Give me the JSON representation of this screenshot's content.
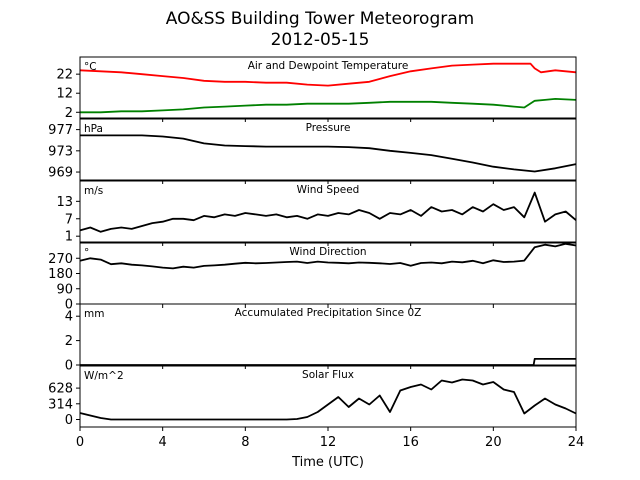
{
  "figure": {
    "title": "AO&SS Building Tower Meteorogram",
    "subtitle": "2012-05-15",
    "xlabel": "Time (UTC)"
  },
  "chart_data": [
    {
      "type": "line",
      "title": "Air and Dewpoint Temperature",
      "ylabel": "°C",
      "xlim": [
        0,
        24
      ],
      "ylim": [
        -1,
        31
      ],
      "yticks": [
        2,
        12,
        22
      ],
      "xticks": [
        0,
        4,
        8,
        12,
        16,
        20,
        24
      ],
      "series": [
        {
          "color": "#ff0000",
          "x": [
            0,
            1,
            2,
            3,
            4,
            5,
            6,
            7,
            8,
            9,
            10,
            11,
            12,
            13,
            14,
            15,
            16,
            17,
            18,
            19,
            20,
            21,
            21.8,
            22,
            22.3,
            23,
            24
          ],
          "y": [
            24,
            23.5,
            23,
            22,
            21,
            20,
            18.5,
            18,
            18,
            17.5,
            17.5,
            16.5,
            16,
            17,
            18,
            21,
            23.5,
            25,
            26.5,
            27,
            27.5,
            27.5,
            27.5,
            25,
            23,
            24,
            23
          ]
        },
        {
          "color": "#008000",
          "x": [
            0,
            1,
            2,
            3,
            4,
            5,
            6,
            7,
            8,
            9,
            10,
            11,
            12,
            13,
            14,
            15,
            16,
            17,
            18,
            19,
            20,
            21,
            21.5,
            22,
            22.5,
            23,
            24
          ],
          "y": [
            2,
            2,
            2.5,
            2.5,
            3,
            3.5,
            4.5,
            5,
            5.5,
            6,
            6,
            6.5,
            6.5,
            6.5,
            7,
            7.5,
            7.5,
            7.5,
            7,
            6.5,
            6,
            5,
            4.5,
            8,
            8.5,
            9,
            8.5
          ]
        }
      ]
    },
    {
      "type": "line",
      "title": "Pressure",
      "ylabel": "hPa",
      "xlim": [
        0,
        24
      ],
      "ylim": [
        967.5,
        979
      ],
      "yticks": [
        969,
        973,
        977
      ],
      "xticks": [
        0,
        4,
        8,
        12,
        16,
        20,
        24
      ],
      "series": [
        {
          "color": "#000000",
          "x": [
            0,
            1,
            2,
            3,
            4,
            5,
            6,
            7,
            8,
            9,
            10,
            11,
            12,
            13,
            14,
            15,
            16,
            17,
            18,
            19,
            20,
            21,
            22,
            23,
            24
          ],
          "y": [
            975.9,
            975.9,
            975.9,
            975.9,
            975.7,
            975.3,
            974.4,
            974,
            973.9,
            973.8,
            973.8,
            973.8,
            973.8,
            973.7,
            973.5,
            973,
            972.6,
            972.2,
            971.5,
            970.8,
            970,
            969.5,
            969.1,
            969.7,
            970.5
          ]
        }
      ]
    },
    {
      "type": "line",
      "title": "Wind Speed",
      "ylabel": "m/s",
      "xlim": [
        0,
        24
      ],
      "ylim": [
        -1,
        20
      ],
      "yticks": [
        1,
        7,
        13
      ],
      "xticks": [
        0,
        4,
        8,
        12,
        16,
        20,
        24
      ],
      "series": [
        {
          "color": "#000000",
          "x": [
            0,
            0.5,
            1,
            1.5,
            2,
            2.5,
            3,
            3.5,
            4,
            4.5,
            5,
            5.5,
            6,
            6.5,
            7,
            7.5,
            8,
            8.5,
            9,
            9.5,
            10,
            10.5,
            11,
            11.5,
            12,
            12.5,
            13,
            13.5,
            14,
            14.5,
            15,
            15.5,
            16,
            16.5,
            17,
            17.5,
            18,
            18.5,
            19,
            19.5,
            20,
            20.5,
            21,
            21.5,
            22,
            22.5,
            23,
            23.5,
            24
          ],
          "y": [
            3,
            4,
            2.5,
            3.5,
            4,
            3.5,
            4.5,
            5.5,
            6,
            7,
            7,
            6.5,
            8,
            7.5,
            8.5,
            8,
            9,
            8.5,
            8,
            8.5,
            7.5,
            8,
            7,
            8.5,
            8,
            9,
            8.5,
            10,
            9,
            7,
            9,
            8.5,
            10,
            8,
            11,
            9.5,
            10,
            8.5,
            11,
            9.5,
            12,
            10,
            11,
            7.5,
            16,
            6,
            8.5,
            9.5,
            6.5
          ]
        }
      ]
    },
    {
      "type": "line",
      "title": "Wind Direction",
      "ylabel": "°",
      "xlim": [
        0,
        24
      ],
      "ylim": [
        0,
        360
      ],
      "yticks": [
        0,
        90,
        180,
        270
      ],
      "xticks": [
        0,
        4,
        8,
        12,
        16,
        20,
        24
      ],
      "series": [
        {
          "color": "#000000",
          "x": [
            0,
            0.5,
            1,
            1.5,
            2,
            2.5,
            3,
            3.5,
            4,
            4.5,
            5,
            5.5,
            6,
            6.5,
            7,
            7.5,
            8,
            8.5,
            9,
            9.5,
            10,
            10.5,
            11,
            11.5,
            12,
            12.5,
            13,
            13.5,
            14,
            14.5,
            15,
            15.5,
            16,
            16.5,
            17,
            17.5,
            18,
            18.5,
            19,
            19.5,
            20,
            20.5,
            21,
            21.5,
            22,
            22.5,
            23,
            23.5,
            24
          ],
          "y": [
            255,
            270,
            262,
            235,
            240,
            232,
            228,
            222,
            215,
            210,
            220,
            215,
            225,
            228,
            232,
            238,
            243,
            240,
            242,
            245,
            248,
            250,
            242,
            250,
            245,
            243,
            240,
            245,
            243,
            240,
            236,
            242,
            226,
            242,
            245,
            240,
            250,
            246,
            255,
            240,
            258,
            248,
            250,
            256,
            335,
            350,
            340,
            355,
            345
          ]
        }
      ]
    },
    {
      "type": "line",
      "title": "Accumulated Precipitation Since 0Z",
      "ylabel": "mm",
      "xlim": [
        0,
        24
      ],
      "ylim": [
        0,
        5
      ],
      "yticks": [
        0,
        2,
        4
      ],
      "xticks": [
        0,
        4,
        8,
        12,
        16,
        20,
        24
      ],
      "series": [
        {
          "color": "#000000",
          "x": [
            0,
            21.95,
            22,
            24
          ],
          "y": [
            0,
            0,
            0.5,
            0.5
          ]
        }
      ]
    },
    {
      "type": "line",
      "title": "Solar Flux",
      "ylabel": "W/m^2",
      "xlim": [
        0,
        24
      ],
      "ylim": [
        -150,
        1070
      ],
      "yticks": [
        0,
        314,
        628
      ],
      "xticks": [
        0,
        4,
        8,
        12,
        16,
        20,
        24
      ],
      "series": [
        {
          "color": "#000000",
          "x": [
            0,
            0.5,
            1,
            1.5,
            2,
            3,
            4,
            5,
            6,
            7,
            8,
            9,
            10,
            10.5,
            11,
            11.5,
            12,
            12.5,
            13,
            13.5,
            14,
            14.5,
            15,
            15.5,
            16,
            16.5,
            17,
            17.5,
            18,
            18.5,
            19,
            19.5,
            20,
            20.5,
            21,
            21.5,
            22,
            22.5,
            23,
            23.5,
            24
          ],
          "y": [
            130,
            80,
            30,
            0,
            0,
            0,
            0,
            0,
            0,
            0,
            0,
            0,
            0,
            10,
            50,
            150,
            300,
            450,
            250,
            420,
            300,
            480,
            150,
            580,
            650,
            700,
            600,
            780,
            740,
            800,
            780,
            700,
            750,
            600,
            550,
            120,
            280,
            420,
            300,
            220,
            120
          ]
        }
      ]
    }
  ]
}
